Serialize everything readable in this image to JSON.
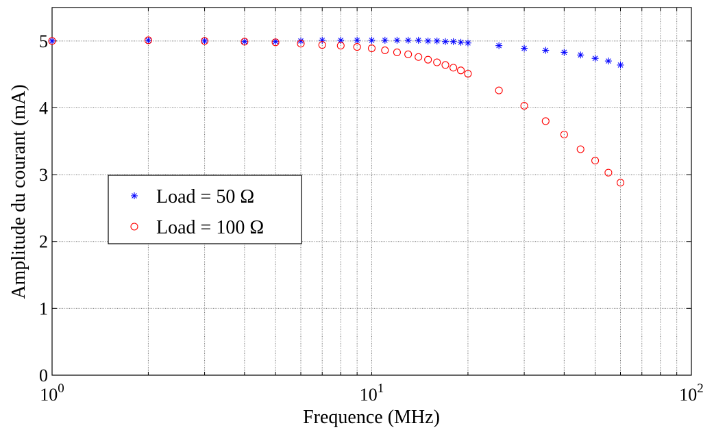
{
  "chart_data": {
    "type": "scatter",
    "title": "",
    "xlabel": "Frequence (MHz)",
    "ylabel": "Amplitude du courant (mA)",
    "xscale": "log",
    "xlim": [
      1,
      100
    ],
    "ylim": [
      0,
      5.5
    ],
    "xticks": [
      {
        "base": "10",
        "exp": "0"
      },
      {
        "base": "10",
        "exp": "1"
      },
      {
        "base": "10",
        "exp": "2"
      }
    ],
    "yticks": [
      "0",
      "1",
      "2",
      "3",
      "4",
      "5"
    ],
    "grid": true,
    "legend_position": "center-left",
    "series": [
      {
        "name": "Load = 50  Ω",
        "marker": "asterisk",
        "color": "#0000ff",
        "x": [
          1,
          2,
          3,
          4,
          5,
          6,
          7,
          8,
          9,
          10,
          11,
          12,
          13,
          14,
          15,
          16,
          17,
          18,
          19,
          20,
          25,
          30,
          35,
          40,
          45,
          50,
          55,
          60
        ],
        "y": [
          5.0,
          5.01,
          5.0,
          4.99,
          4.99,
          5.0,
          5.01,
          5.01,
          5.01,
          5.01,
          5.01,
          5.01,
          5.01,
          5.01,
          5.0,
          5.0,
          4.99,
          4.99,
          4.98,
          4.97,
          4.93,
          4.89,
          4.86,
          4.83,
          4.79,
          4.74,
          4.7,
          4.64
        ]
      },
      {
        "name": "Load = 100 Ω",
        "marker": "circle",
        "color": "#ff0000",
        "x": [
          1,
          2,
          3,
          4,
          5,
          6,
          7,
          8,
          9,
          10,
          11,
          12,
          13,
          14,
          15,
          16,
          17,
          18,
          19,
          20,
          25,
          30,
          35,
          40,
          45,
          50,
          55,
          60
        ],
        "y": [
          5.0,
          5.01,
          5.0,
          4.99,
          4.98,
          4.96,
          4.94,
          4.93,
          4.91,
          4.89,
          4.86,
          4.83,
          4.8,
          4.76,
          4.72,
          4.68,
          4.64,
          4.6,
          4.56,
          4.51,
          4.26,
          4.03,
          3.8,
          3.6,
          3.38,
          3.21,
          3.03,
          2.88
        ]
      }
    ]
  }
}
